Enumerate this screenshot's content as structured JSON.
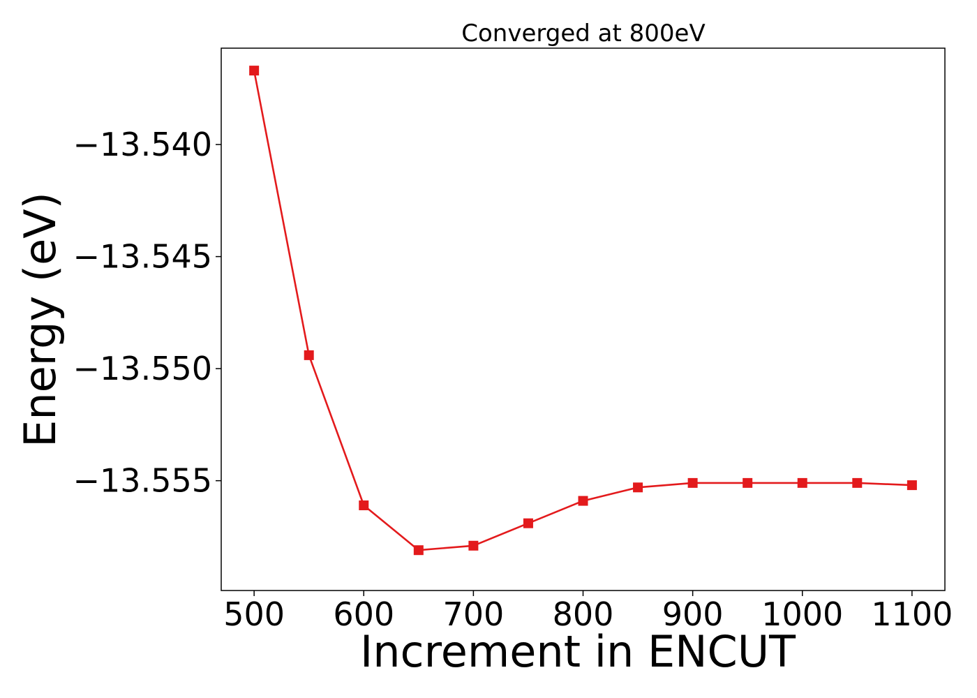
{
  "chart_data": {
    "type": "line",
    "title": "Converged at 800eV",
    "xlabel": "Increment in ENCUT",
    "ylabel": "Energy (eV)",
    "x": [
      500,
      550,
      600,
      650,
      700,
      750,
      800,
      850,
      900,
      950,
      1000,
      1050,
      1100
    ],
    "series": [
      {
        "values": [
          -13.5367,
          -13.5494,
          -13.5561,
          -13.5581,
          -13.5579,
          -13.5569,
          -13.5559,
          -13.5553,
          -13.5551,
          -13.5551,
          -13.5551,
          -13.5551,
          -13.5552
        ],
        "color": "#e31a1c",
        "marker": "square"
      }
    ],
    "xticks": [
      500,
      600,
      700,
      800,
      900,
      1000,
      1100
    ],
    "xtick_labels": [
      "500",
      "600",
      "700",
      "800",
      "900",
      "1000",
      "1100"
    ],
    "yticks": [
      -13.54,
      -13.545,
      -13.55,
      -13.555
    ],
    "ytick_labels": [
      "−13.540",
      "−13.545",
      "−13.550",
      "−13.555"
    ],
    "xlim": [
      470,
      1130
    ],
    "ylim": [
      -13.5599,
      -13.5357
    ],
    "grid": false,
    "legend": "none"
  }
}
